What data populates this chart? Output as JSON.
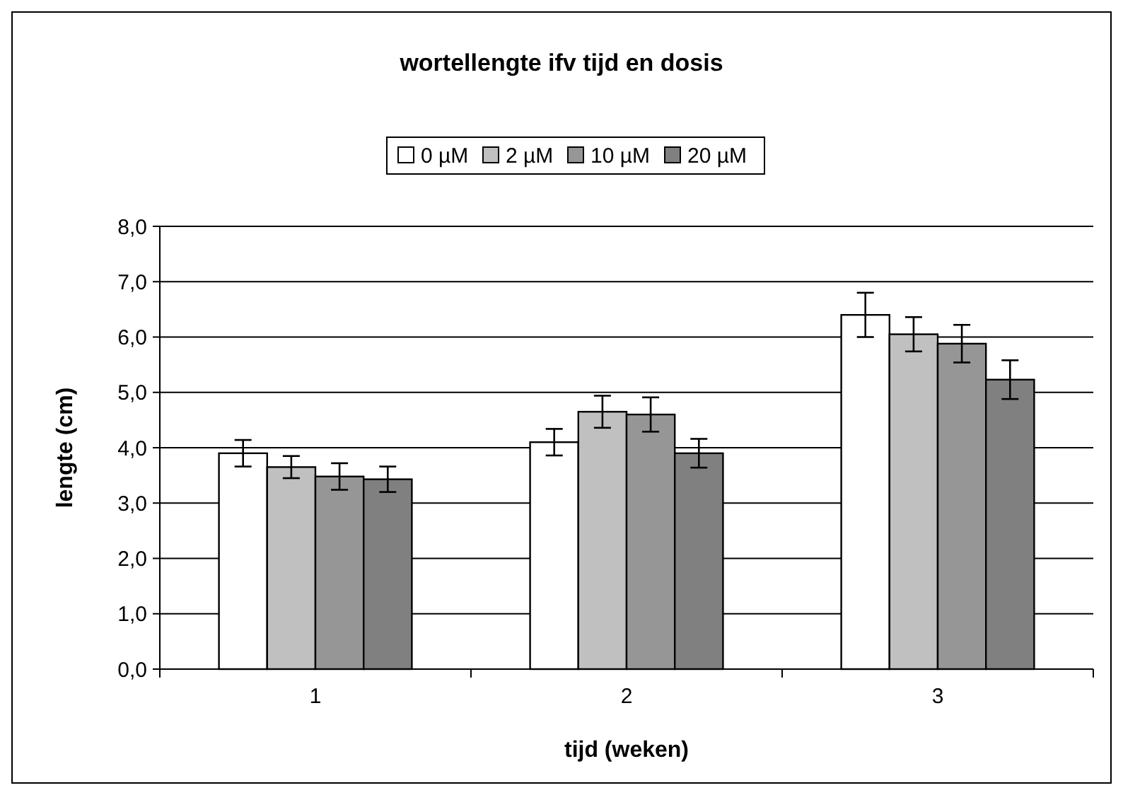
{
  "chart_data": {
    "type": "bar",
    "title": "wortellengte ifv tijd en dosis",
    "xlabel": "tijd (weken)",
    "ylabel": "lengte (cm)",
    "categories": [
      "1",
      "2",
      "3"
    ],
    "series": [
      {
        "name": "0 µM",
        "color": "#ffffff",
        "values": [
          3.9,
          4.1,
          6.4
        ],
        "errors": [
          0.24,
          0.24,
          0.4
        ]
      },
      {
        "name": "2 µM",
        "color": "#c0c0c0",
        "values": [
          3.65,
          4.65,
          6.05
        ],
        "errors": [
          0.2,
          0.29,
          0.31
        ]
      },
      {
        "name": "10 µM",
        "color": "#969696",
        "values": [
          3.48,
          4.6,
          5.88
        ],
        "errors": [
          0.24,
          0.31,
          0.34
        ]
      },
      {
        "name": "20 µM",
        "color": "#808080",
        "values": [
          3.43,
          3.9,
          5.23
        ],
        "errors": [
          0.23,
          0.26,
          0.35
        ]
      }
    ],
    "ylim": [
      0,
      8
    ],
    "yticks": [
      {
        "value": 0,
        "label": "0,0"
      },
      {
        "value": 1,
        "label": "1,0"
      },
      {
        "value": 2,
        "label": "2,0"
      },
      {
        "value": 3,
        "label": "3,0"
      },
      {
        "value": 4,
        "label": "4,0"
      },
      {
        "value": 5,
        "label": "5,0"
      },
      {
        "value": 6,
        "label": "6,0"
      },
      {
        "value": 7,
        "label": "7,0"
      },
      {
        "value": 8,
        "label": "8,0"
      }
    ],
    "grid": "y",
    "legend": "top"
  }
}
